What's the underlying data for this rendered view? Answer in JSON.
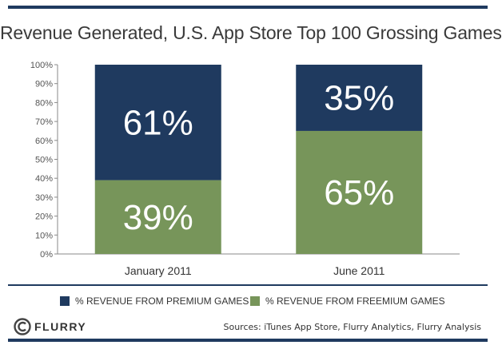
{
  "chart_data": {
    "type": "bar",
    "stacked": true,
    "title": "Revenue Generated, U.S. App Store Top 100 Grossing Games",
    "categories": [
      "January 2011",
      "June 2011"
    ],
    "series": [
      {
        "name": "% REVENUE FROM FREEMIUM GAMES",
        "values": [
          39,
          65
        ],
        "labels": [
          "39%",
          "65%"
        ],
        "color": "#77955a"
      },
      {
        "name": "% REVENUE FROM PREMIUM GAMES",
        "values": [
          61,
          35
        ],
        "labels": [
          "61%",
          "35%"
        ],
        "color": "#1f3a5f"
      }
    ],
    "ylim": [
      0,
      100
    ],
    "yticks": [
      0,
      10,
      20,
      30,
      40,
      50,
      60,
      70,
      80,
      90,
      100
    ],
    "ytick_labels": [
      "0%",
      "10%",
      "20%",
      "30%",
      "40%",
      "50%",
      "60%",
      "70%",
      "80%",
      "90%",
      "100%"
    ],
    "xlabel": "",
    "ylabel": "",
    "grid": false,
    "legend_position": "bottom"
  },
  "legend": {
    "premium_label": "% REVENUE FROM PREMIUM GAMES",
    "freemium_label": "% REVENUE FROM FREEMIUM GAMES"
  },
  "footer": {
    "logo_text": "FLURRY",
    "sources": "Sources: iTunes App Store, Flurry Analytics, Flurry Analysis"
  },
  "colors": {
    "premium": "#1f3a5f",
    "freemium": "#77955a",
    "rule": "#1f3a5f"
  }
}
